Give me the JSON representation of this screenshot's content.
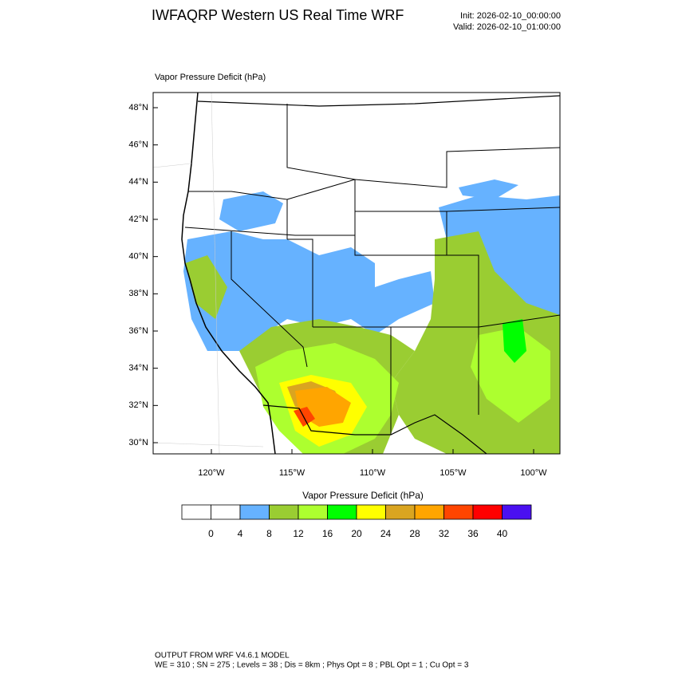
{
  "header": {
    "title": "IWFAQRP Western US Real Time WRF",
    "init": "Init: 2026-02-10_00:00:00",
    "valid": "Valid: 2026-02-10_01:00:00"
  },
  "plot": {
    "title": "Vapor Pressure Deficit   (hPa)",
    "lat_labels": [
      "48°N",
      "46°N",
      "44°N",
      "42°N",
      "40°N",
      "38°N",
      "36°N",
      "34°N",
      "32°N",
      "30°N"
    ],
    "lon_labels": [
      "120°W",
      "115°W",
      "110°W",
      "105°W",
      "100°W"
    ]
  },
  "colorbar": {
    "title": "Vapor Pressure Deficit  (hPa)",
    "labels": [
      0,
      4,
      8,
      12,
      16,
      20,
      24,
      28,
      32,
      36,
      40
    ],
    "colors": [
      "#ffffff",
      "#ffffff",
      "#66b2ff",
      "#9acd32",
      "#adff2f",
      "#00ff00",
      "#ffff00",
      "#daa520",
      "#ffa500",
      "#ff4500",
      "#ff0000",
      "#4a10f0"
    ]
  },
  "footer": {
    "lines": [
      "OUTPUT FROM WRF V4.6.1 MODEL",
      "WE = 310 ; SN = 275 ; Levels = 38 ; Dis = 8km ; Phys Opt = 8 ; PBL Opt = 1 ; Cu Opt = 3"
    ]
  }
}
